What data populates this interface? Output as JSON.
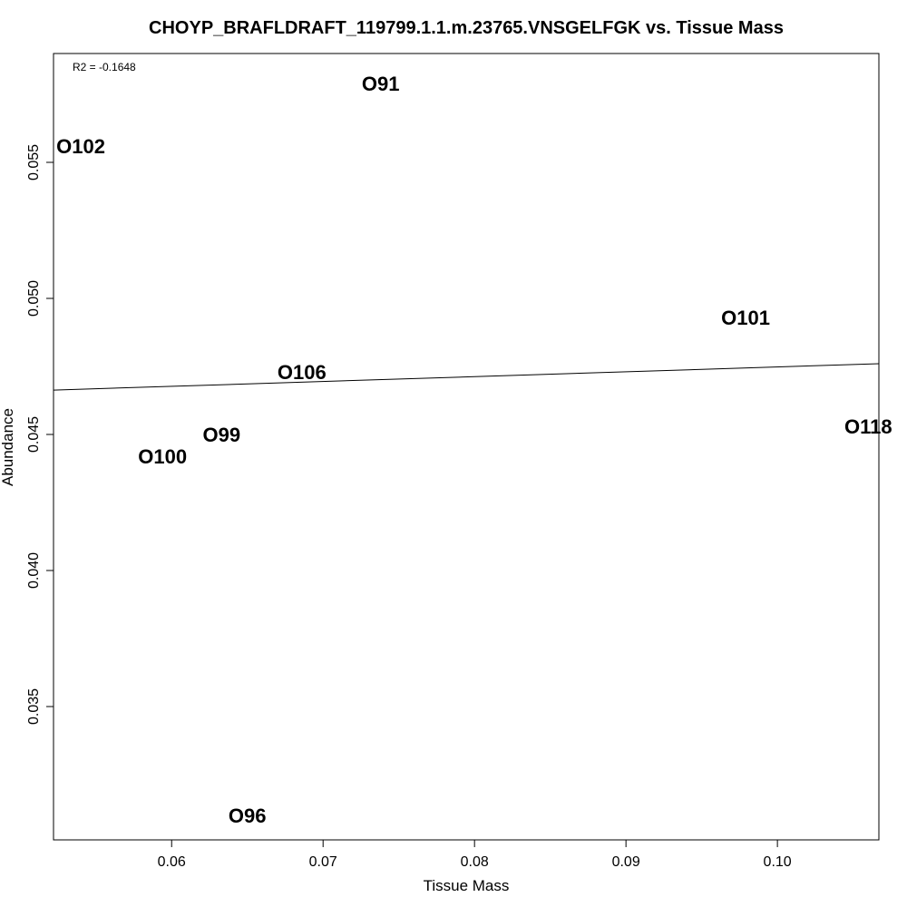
{
  "chart_data": {
    "type": "scatter",
    "title": "CHOYP_BRAFLDRAFT_119799.1.1.m.23765.VNSGELFGK vs. Tissue Mass",
    "xlabel": "Tissue Mass",
    "ylabel": "Abundance",
    "annotation": "R2 = -0.1648",
    "xlim": [
      0.0522,
      0.1067
    ],
    "ylim": [
      0.0301,
      0.059
    ],
    "xticks": [
      {
        "value": 0.06,
        "label": "0.06"
      },
      {
        "value": 0.07,
        "label": "0.07"
      },
      {
        "value": 0.08,
        "label": "0.08"
      },
      {
        "value": 0.09,
        "label": "0.09"
      },
      {
        "value": 0.1,
        "label": "0.10"
      }
    ],
    "yticks": [
      {
        "value": 0.035,
        "label": "0.035"
      },
      {
        "value": 0.04,
        "label": "0.040"
      },
      {
        "value": 0.045,
        "label": "0.045"
      },
      {
        "value": 0.05,
        "label": "0.050"
      },
      {
        "value": 0.055,
        "label": "0.055"
      }
    ],
    "points": [
      {
        "label": "O91",
        "x": 0.0738,
        "y": 0.0579
      },
      {
        "label": "O102",
        "x": 0.054,
        "y": 0.0556
      },
      {
        "label": "O101",
        "x": 0.0979,
        "y": 0.0493
      },
      {
        "label": "O106",
        "x": 0.0686,
        "y": 0.0473
      },
      {
        "label": "O118",
        "x": 0.106,
        "y": 0.0453
      },
      {
        "label": "O99",
        "x": 0.0633,
        "y": 0.045
      },
      {
        "label": "O100",
        "x": 0.0594,
        "y": 0.0442
      },
      {
        "label": "O96",
        "x": 0.065,
        "y": 0.031
      }
    ],
    "fit_line": {
      "x": [
        0.0522,
        0.1067
      ],
      "y": [
        0.04663,
        0.0476
      ]
    },
    "grid": false
  }
}
